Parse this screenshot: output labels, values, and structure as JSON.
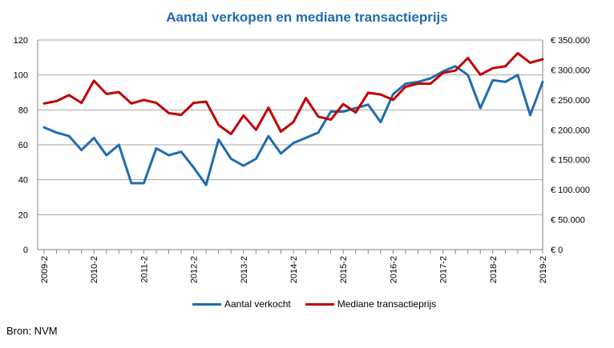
{
  "chart_data": {
    "type": "line",
    "title": "Aantal verkopen en mediane transactieprijs",
    "x": [
      "2009-2",
      "2009-3",
      "2009-4",
      "2010-1",
      "2010-2",
      "2010-3",
      "2010-4",
      "2011-1",
      "2011-2",
      "2011-3",
      "2011-4",
      "2012-1",
      "2012-2",
      "2012-3",
      "2012-4",
      "2013-1",
      "2013-2",
      "2013-3",
      "2013-4",
      "2014-1",
      "2014-2",
      "2014-3",
      "2014-4",
      "2015-1",
      "2015-2",
      "2015-3",
      "2015-4",
      "2016-1",
      "2016-2",
      "2016-3",
      "2016-4",
      "2017-1",
      "2017-2",
      "2017-3",
      "2017-4",
      "2018-1",
      "2018-2",
      "2018-3",
      "2018-4",
      "2019-1",
      "2019-2"
    ],
    "x_tick_labels": [
      "2009-2",
      "2010-2",
      "2011-2",
      "2012-2",
      "2013-2",
      "2014-2",
      "2015-2",
      "2016-2",
      "2017-2",
      "2018-2",
      "2019-2"
    ],
    "y_left": {
      "ticks": [
        "0",
        "20",
        "40",
        "60",
        "80",
        "100",
        "120"
      ],
      "lim": [
        0,
        120
      ]
    },
    "y_right": {
      "ticks": [
        "€ 0",
        "€ 50.000",
        "€ 100.000",
        "€ 150.000",
        "€ 200.000",
        "€ 250.000",
        "€ 300.000",
        "€ 350.000"
      ],
      "lim": [
        0,
        350000
      ]
    },
    "series": [
      {
        "name": "Aantal verkocht",
        "axis": "left",
        "color": "#1f6cb0",
        "values": [
          70,
          67,
          65,
          57,
          64,
          54,
          60,
          38,
          38,
          58,
          54,
          56,
          47,
          37,
          63,
          52,
          48,
          52,
          65,
          55,
          61,
          64,
          67,
          79,
          79,
          81,
          83,
          73,
          89,
          95,
          96,
          98,
          102,
          105,
          100,
          81,
          97,
          96,
          100,
          77,
          96
        ]
      },
      {
        "name": "Mediane transactieprijs",
        "axis": "right",
        "color": "#c00000",
        "values": [
          244000,
          248000,
          258000,
          245000,
          282000,
          260000,
          263000,
          244000,
          250000,
          245000,
          228000,
          225000,
          245000,
          247000,
          208000,
          193000,
          224000,
          200000,
          237000,
          197000,
          213000,
          253000,
          222000,
          217000,
          243000,
          229000,
          262000,
          259000,
          250000,
          272000,
          277000,
          277000,
          295000,
          299000,
          320000,
          292000,
          303000,
          306000,
          328000,
          312000,
          318000
        ]
      }
    ],
    "grid": true,
    "legend": "bottom"
  },
  "source": "Bron: NVM"
}
